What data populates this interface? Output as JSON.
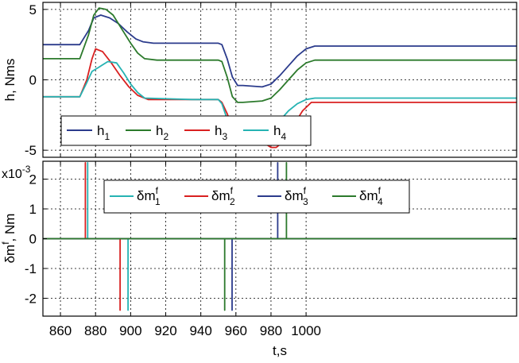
{
  "chart_data": [
    {
      "type": "line",
      "ylabel": "h, Nms",
      "xlabel": "",
      "xlim": [
        850,
        1120
      ],
      "ylim": [
        -5.5,
        5.5
      ],
      "x_ticks": [
        860,
        880,
        900,
        920,
        940,
        960,
        980,
        1000
      ],
      "y_ticks": [
        5,
        0,
        -5
      ],
      "y_tick_labels": [
        "5",
        "0",
        "-5"
      ],
      "grid": true,
      "legend_position": "bottom-left",
      "series": [
        {
          "name": "h",
          "sub": "1",
          "color": "#2b3b8c",
          "x": [
            850,
            871,
            876,
            879,
            883,
            888,
            893,
            898,
            903,
            907,
            913,
            920,
            935,
            950,
            952,
            955,
            958,
            961,
            964,
            975,
            980,
            985,
            990,
            995,
            1000,
            1005,
            1120
          ],
          "y": [
            2.5,
            2.5,
            3.5,
            4.4,
            4.6,
            4.4,
            4.0,
            3.4,
            2.9,
            2.7,
            2.6,
            2.6,
            2.6,
            2.6,
            2.5,
            1.5,
            0.2,
            -0.4,
            -0.4,
            -0.5,
            -0.3,
            0.3,
            1.0,
            1.7,
            2.2,
            2.4,
            2.4
          ]
        },
        {
          "name": "h",
          "sub": "2",
          "color": "#2c7a2c",
          "x": [
            850,
            871,
            876,
            879,
            882,
            886,
            890,
            895,
            900,
            904,
            908,
            915,
            935,
            950,
            952,
            955,
            958,
            961,
            964,
            975,
            980,
            985,
            990,
            995,
            1000,
            1005,
            1120
          ],
          "y": [
            1.5,
            1.5,
            3.2,
            4.6,
            5.1,
            5.0,
            4.6,
            3.6,
            2.6,
            1.9,
            1.5,
            1.4,
            1.4,
            1.4,
            1.3,
            0.2,
            -1.2,
            -1.6,
            -1.6,
            -1.5,
            -1.3,
            -0.7,
            0.0,
            0.7,
            1.2,
            1.4,
            1.4
          ]
        },
        {
          "name": "h",
          "sub": "3",
          "color": "#d92020",
          "x": [
            850,
            871,
            875,
            878,
            880,
            884,
            889,
            894,
            899,
            904,
            910,
            935,
            950,
            952,
            955,
            958,
            961,
            964,
            970,
            975,
            980,
            983,
            988,
            993,
            998,
            1003,
            1120
          ],
          "y": [
            -1.2,
            -1.2,
            0.0,
            1.5,
            2.2,
            2.0,
            1.2,
            0.3,
            -0.5,
            -1.1,
            -1.4,
            -1.4,
            -1.4,
            -1.6,
            -2.4,
            -3.4,
            -4.0,
            -4.2,
            -4.2,
            -4.4,
            -4.8,
            -4.8,
            -4.3,
            -3.2,
            -2.2,
            -1.6,
            -1.6
          ]
        },
        {
          "name": "h",
          "sub": "4",
          "color": "#26b3b3",
          "x": [
            850,
            871,
            875,
            878,
            882,
            887,
            892,
            896,
            900,
            904,
            908,
            935,
            950,
            952,
            955,
            958,
            961,
            964,
            970,
            975,
            980,
            985,
            990,
            995,
            1000,
            1005,
            1120
          ],
          "y": [
            -1.2,
            -1.2,
            -0.2,
            0.6,
            0.9,
            1.3,
            1.2,
            0.5,
            -0.3,
            -0.9,
            -1.3,
            -1.4,
            -1.4,
            -1.7,
            -2.8,
            -4.0,
            -4.6,
            -4.6,
            -4.6,
            -4.5,
            -3.8,
            -2.9,
            -2.2,
            -1.7,
            -1.4,
            -1.3,
            -1.3
          ]
        }
      ]
    },
    {
      "type": "line",
      "ylabel_main": "δm",
      "ylabel_sup": "f",
      "ylabel_rest": ", Nm",
      "scale_label": "x10",
      "scale_exp": "-3",
      "xlabel": "t,s",
      "xlim": [
        850,
        1120
      ],
      "ylim": [
        -2.6,
        2.6
      ],
      "x_ticks": [
        860,
        880,
        900,
        920,
        940,
        960,
        980,
        1000
      ],
      "y_ticks": [
        2,
        1,
        0,
        -1,
        -2
      ],
      "y_tick_labels": [
        "2",
        "1",
        "0",
        "-1",
        "-2"
      ],
      "grid": true,
      "legend_position": "top-center",
      "series": [
        {
          "name": "δm",
          "sup": "f",
          "sub": "1",
          "color": "#26b3b3",
          "x": [
            850,
            875.5,
            875.5,
            875.5,
            898.5,
            898.5,
            898.5,
            1120
          ],
          "y": [
            0,
            0,
            2.55,
            0,
            0,
            -2.4,
            0,
            0
          ]
        },
        {
          "name": "δm",
          "sup": "f",
          "sub": "2",
          "color": "#d92020",
          "x": [
            850,
            874.2,
            874.2,
            874.2,
            894.0,
            894.0,
            894.0,
            1120
          ],
          "y": [
            0,
            0,
            2.55,
            0,
            0,
            -2.4,
            0,
            0
          ]
        },
        {
          "name": "δm",
          "sup": "f",
          "sub": "3",
          "color": "#2b3b8c",
          "x": [
            850,
            957.8,
            957.8,
            957.8,
            983.8,
            983.8,
            983.8,
            1120
          ],
          "y": [
            0,
            0,
            -2.4,
            0,
            0,
            2.55,
            0,
            0
          ]
        },
        {
          "name": "δm",
          "sup": "f",
          "sub": "4",
          "color": "#2c7a2c",
          "x": [
            850,
            953.6,
            953.6,
            953.6,
            988.8,
            988.8,
            988.8,
            1120
          ],
          "y": [
            0,
            0,
            -2.4,
            0,
            0,
            2.55,
            0,
            0
          ]
        }
      ]
    }
  ]
}
